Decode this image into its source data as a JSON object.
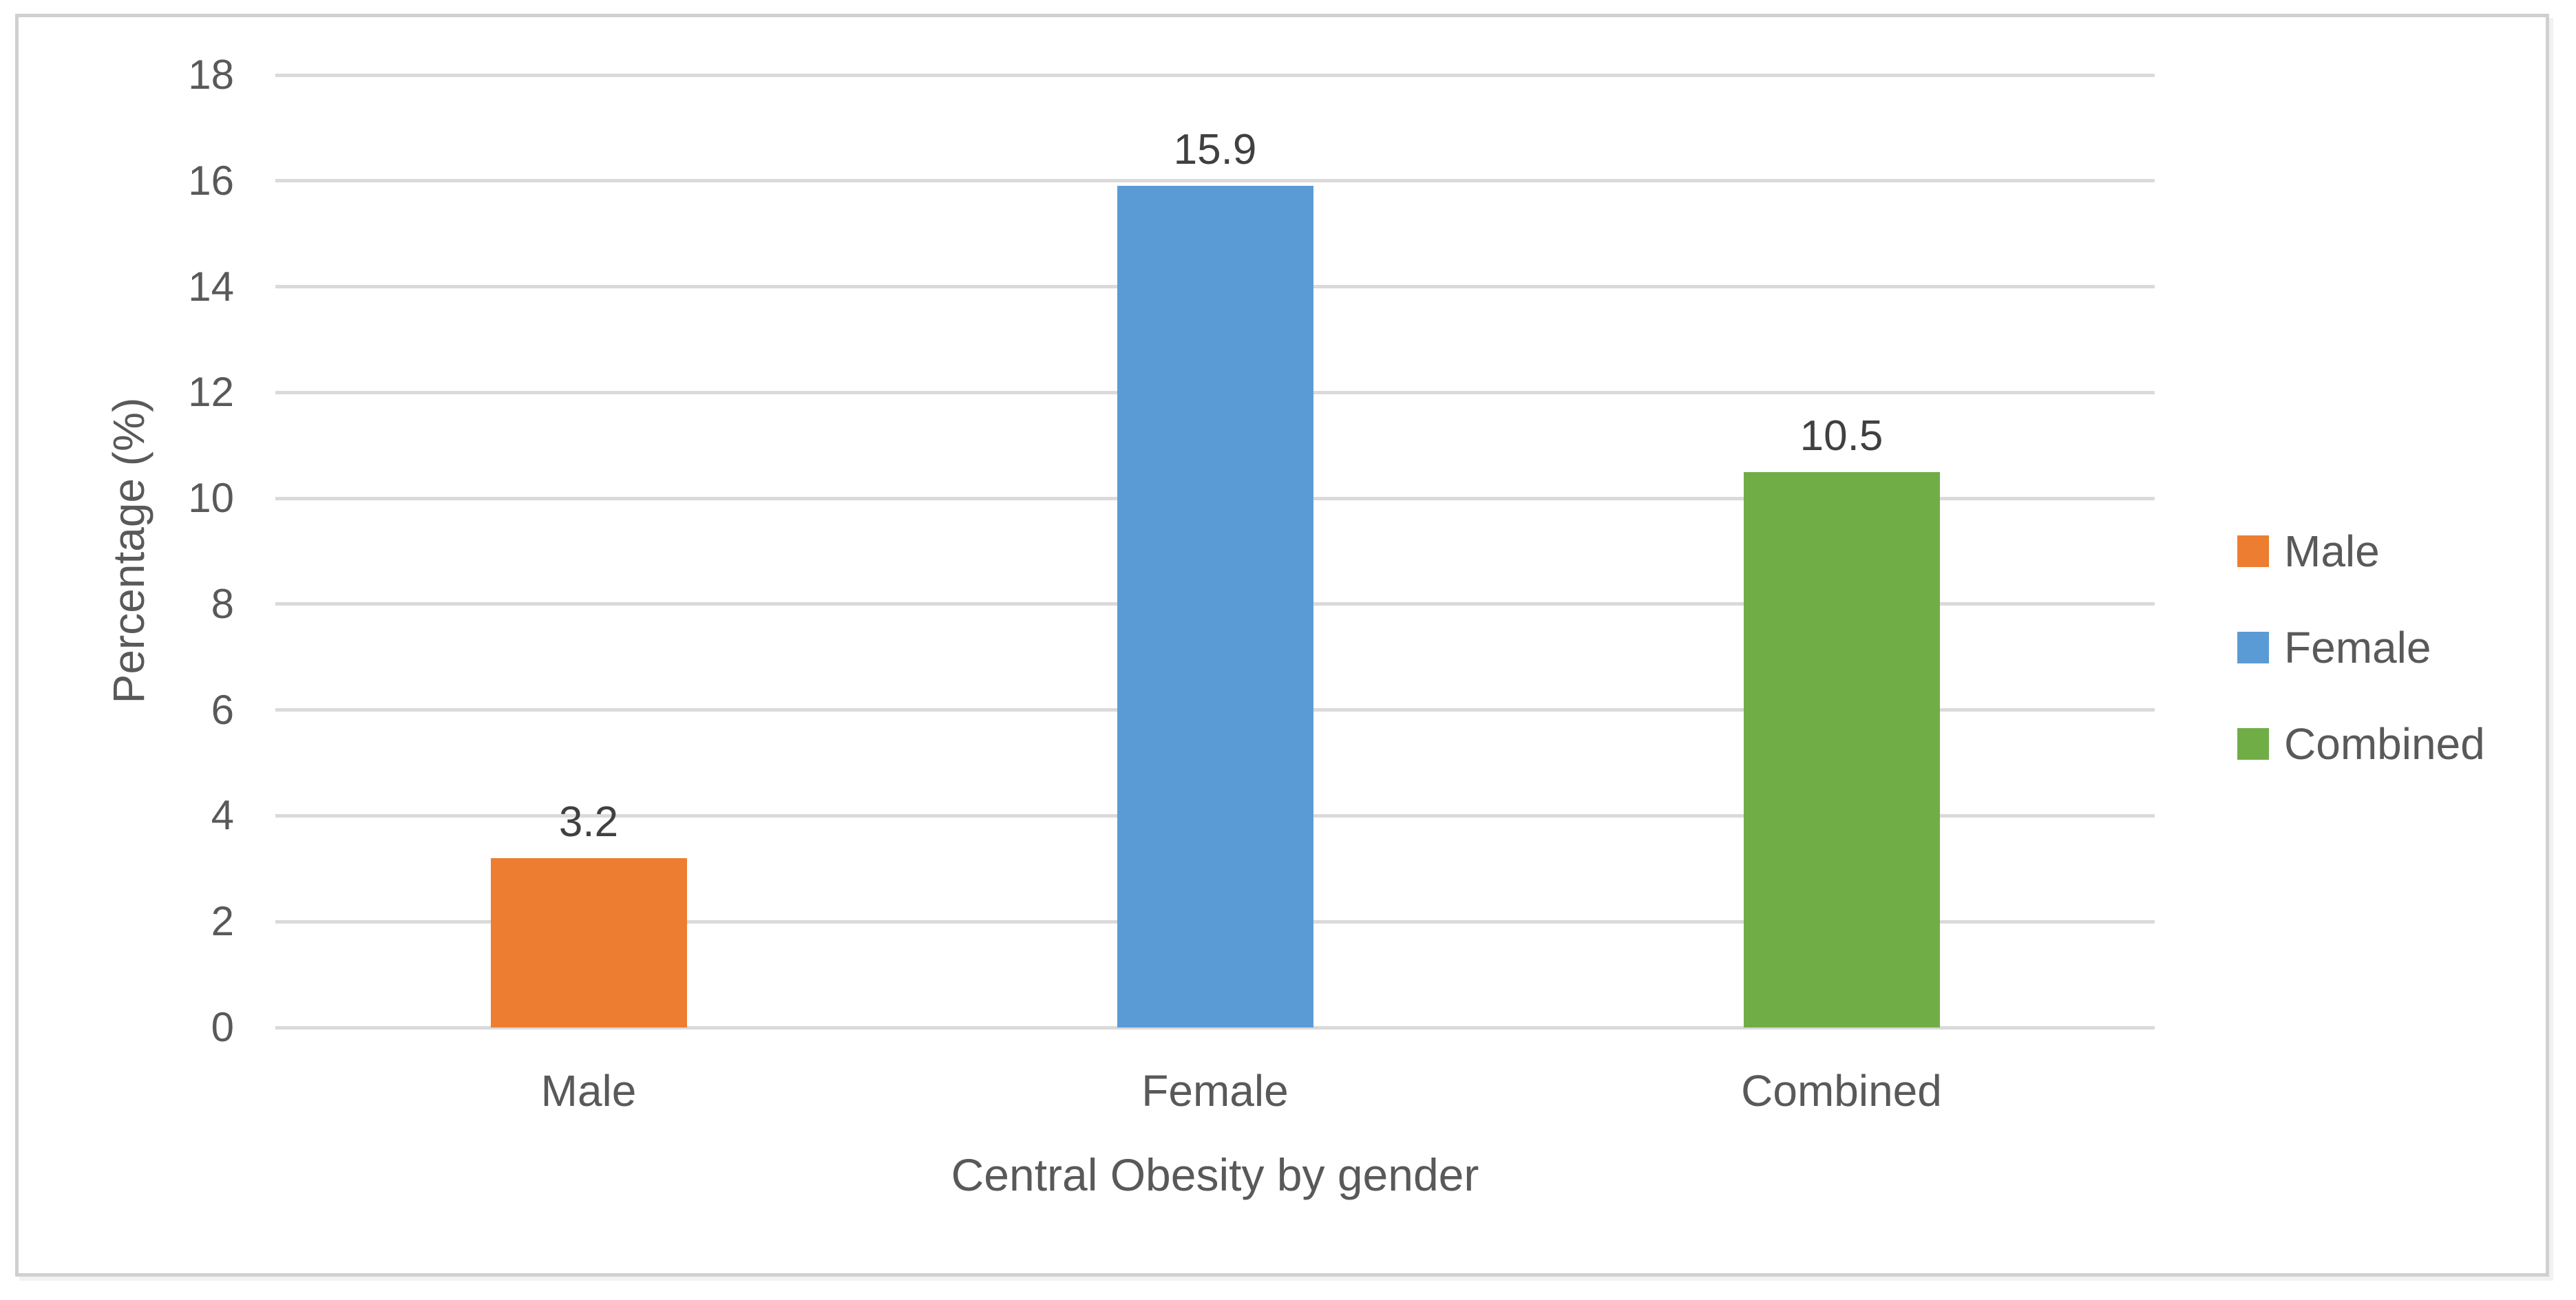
{
  "chart_data": {
    "type": "bar",
    "title": "",
    "xlabel": "Central Obesity by gender",
    "ylabel": "Percentage (%)",
    "categories": [
      "Male",
      "Female",
      "Combined"
    ],
    "series": [
      {
        "name": "Male",
        "value": 3.2,
        "color": "#ED7D31"
      },
      {
        "name": "Female",
        "value": 15.9,
        "color": "#5B9BD5"
      },
      {
        "name": "Combined",
        "value": 10.5,
        "color": "#70AD47"
      }
    ],
    "ylim": [
      0,
      18
    ],
    "yticks": [
      0,
      2,
      4,
      6,
      8,
      10,
      12,
      14,
      16,
      18
    ],
    "grid": true,
    "legend_position": "right",
    "colors": {
      "gridline": "#dadada",
      "frame_border": "#d0d0d0",
      "axis_text": "#595959",
      "data_label_text": "#404040"
    }
  }
}
